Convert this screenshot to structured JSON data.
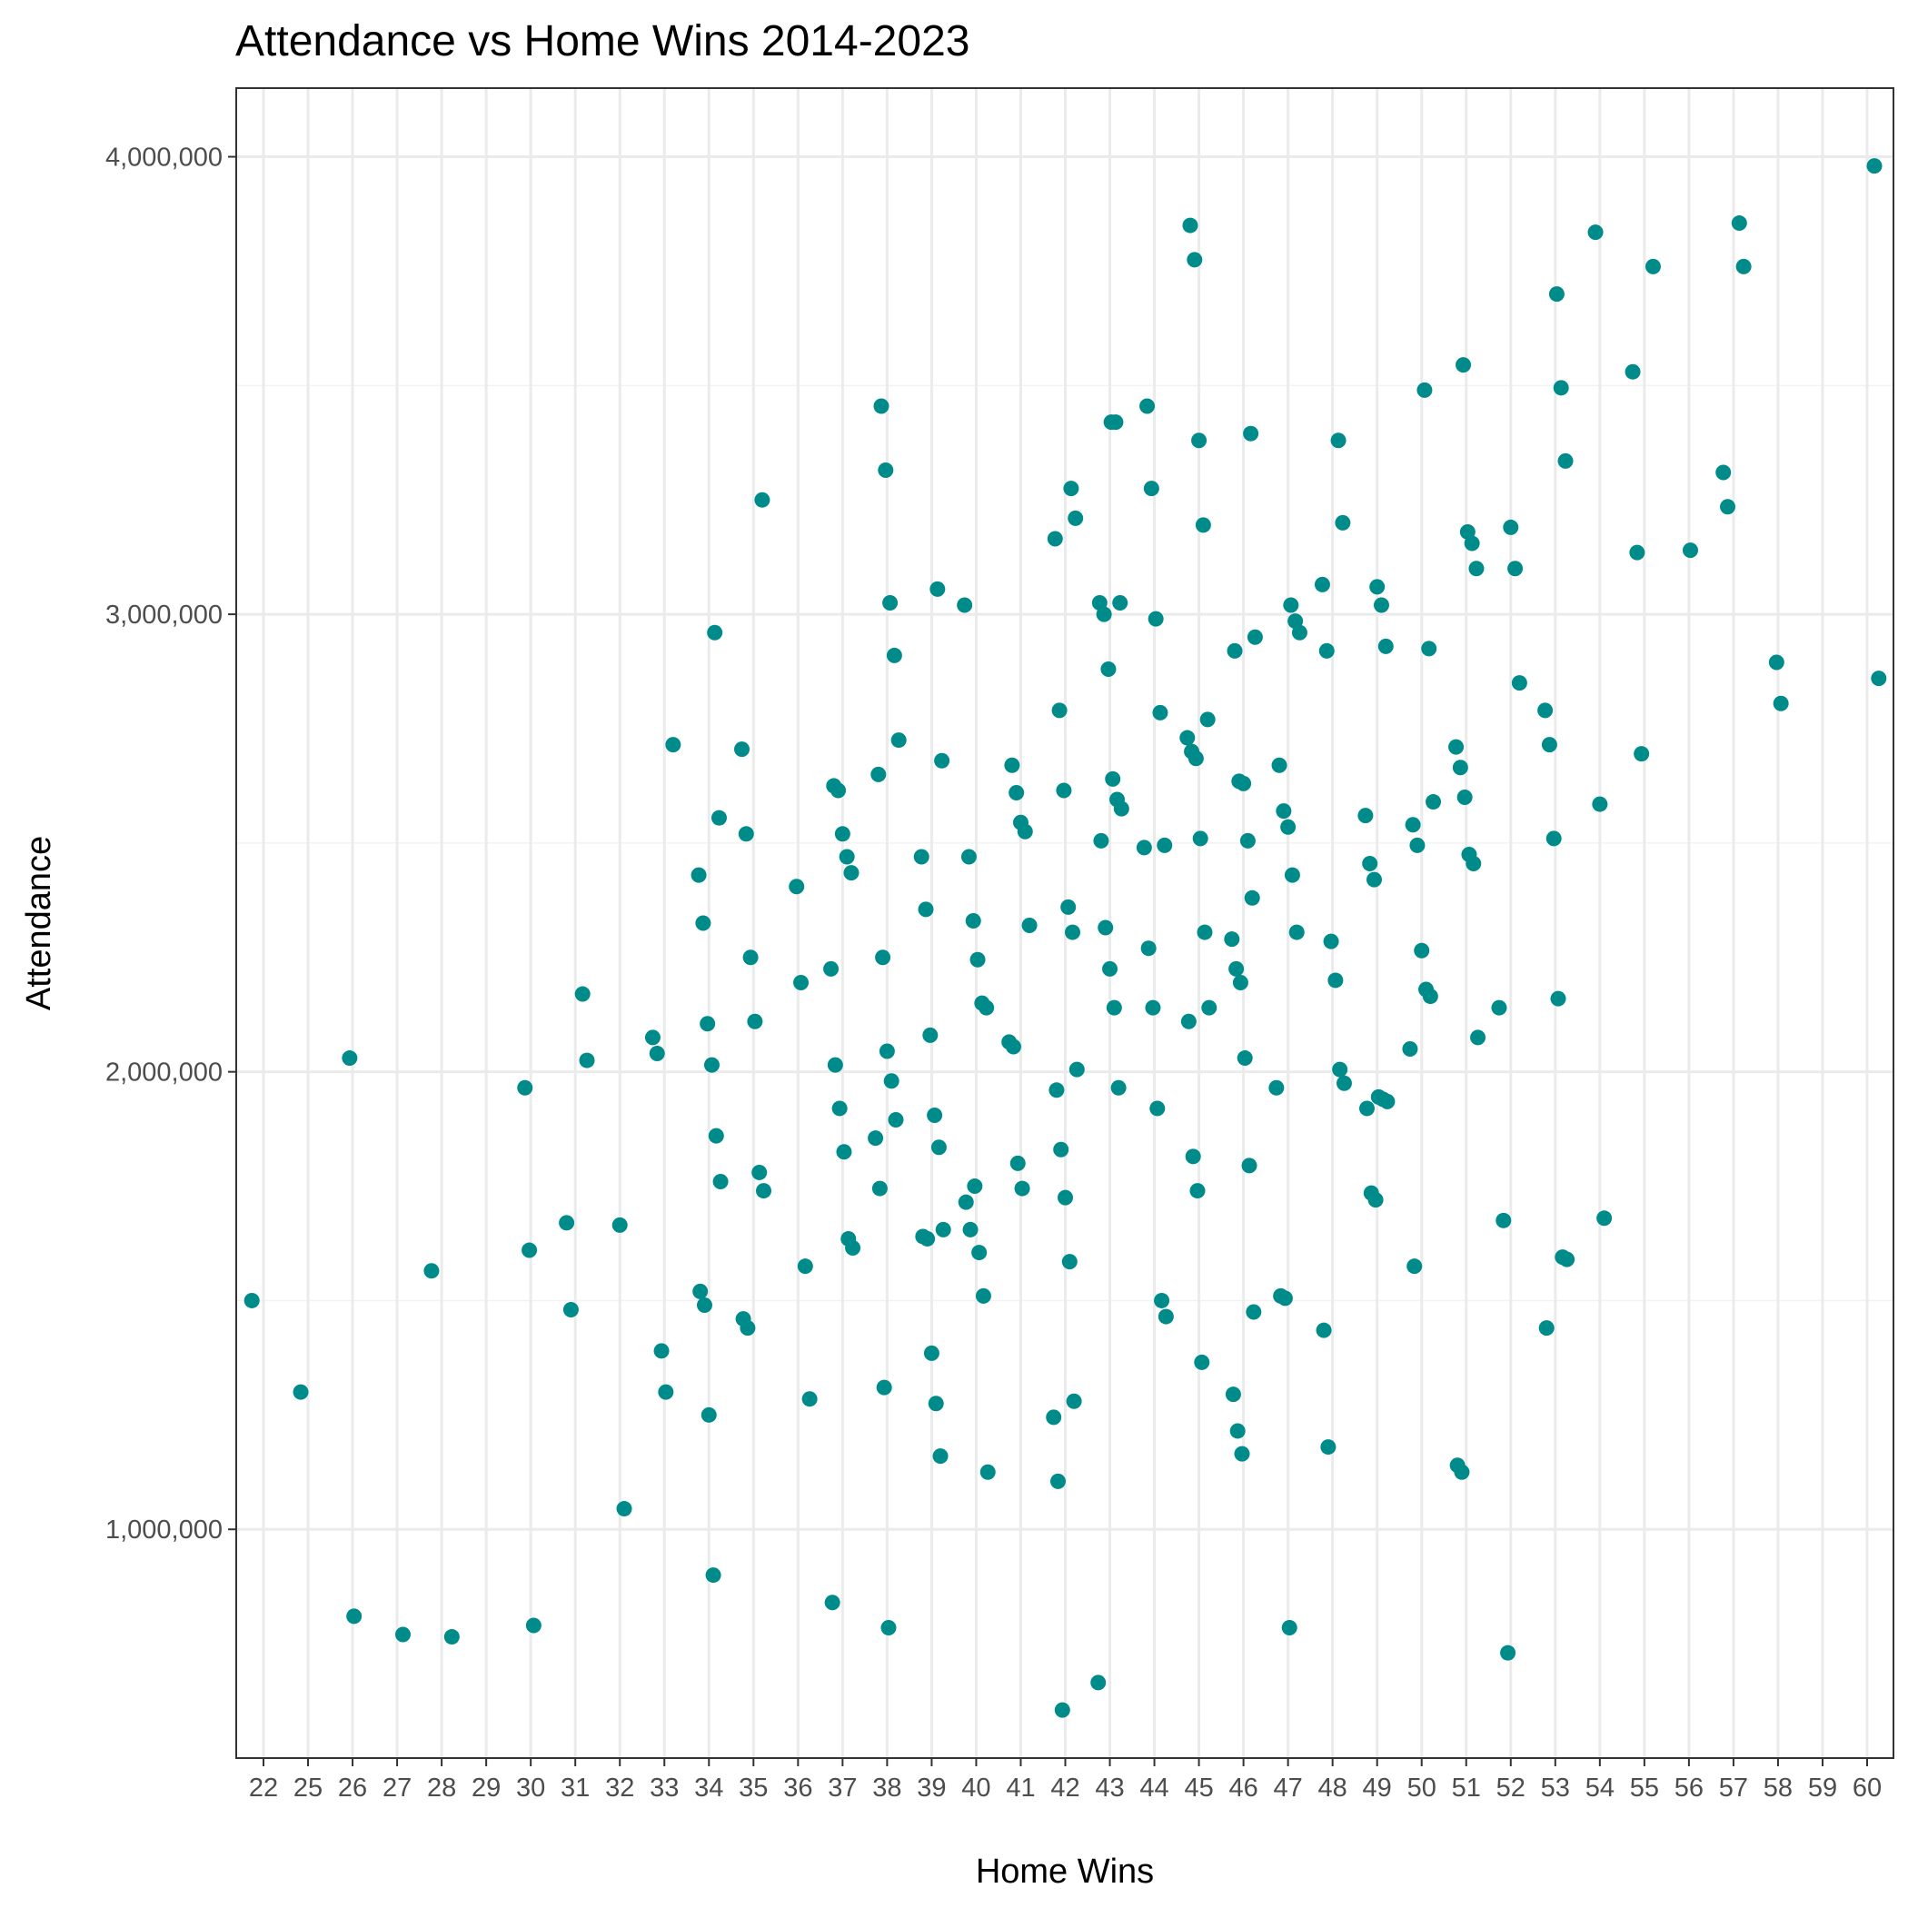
{
  "chart_data": {
    "type": "scatter",
    "title": "Attendance vs Home Wins 2014-2023",
    "xlabel": "Home Wins",
    "ylabel": "Attendance",
    "x_categories": [
      "22",
      "25",
      "26",
      "27",
      "28",
      "29",
      "30",
      "31",
      "32",
      "33",
      "34",
      "35",
      "36",
      "37",
      "38",
      "39",
      "40",
      "41",
      "42",
      "43",
      "44",
      "45",
      "46",
      "47",
      "48",
      "49",
      "50",
      "51",
      "52",
      "53",
      "54",
      "55",
      "56",
      "57",
      "58",
      "59",
      "60"
    ],
    "y_ticks": [
      1000000,
      2000000,
      3000000,
      4000000
    ],
    "y_tick_labels": [
      "1,000,000",
      "2,000,000",
      "3,000,000",
      "4,000,000"
    ],
    "ylim": [
      500000,
      4150000
    ],
    "grid": true,
    "point_color": "#008B8B",
    "points": [
      [
        22,
        1500000
      ],
      [
        25,
        1300000
      ],
      [
        26,
        2030000
      ],
      [
        26,
        810000
      ],
      [
        27,
        770000
      ],
      [
        28,
        765000
      ],
      [
        28,
        1565000
      ],
      [
        30,
        1965000
      ],
      [
        30,
        1610000
      ],
      [
        30,
        790000
      ],
      [
        31,
        2170000
      ],
      [
        31,
        2025000
      ],
      [
        31,
        1670000
      ],
      [
        31,
        1480000
      ],
      [
        32,
        1665000
      ],
      [
        32,
        1045000
      ],
      [
        33,
        2715000
      ],
      [
        33,
        2075000
      ],
      [
        33,
        2040000
      ],
      [
        33,
        1390000
      ],
      [
        33,
        1300000
      ],
      [
        34,
        2960000
      ],
      [
        34,
        2555000
      ],
      [
        34,
        2430000
      ],
      [
        34,
        2325000
      ],
      [
        34,
        2105000
      ],
      [
        34,
        2015000
      ],
      [
        34,
        1860000
      ],
      [
        34,
        1760000
      ],
      [
        34,
        1520000
      ],
      [
        34,
        1490000
      ],
      [
        34,
        1250000
      ],
      [
        34,
        900000
      ],
      [
        35,
        3250000
      ],
      [
        35,
        2705000
      ],
      [
        35,
        2520000
      ],
      [
        35,
        2250000
      ],
      [
        35,
        2110000
      ],
      [
        35,
        1780000
      ],
      [
        35,
        1740000
      ],
      [
        35,
        1460000
      ],
      [
        35,
        1440000
      ],
      [
        36,
        2405000
      ],
      [
        36,
        2195000
      ],
      [
        36,
        1575000
      ],
      [
        36,
        1285000
      ],
      [
        37,
        2625000
      ],
      [
        37,
        2615000
      ],
      [
        37,
        2520000
      ],
      [
        37,
        2470000
      ],
      [
        37,
        2435000
      ],
      [
        37,
        2225000
      ],
      [
        37,
        2015000
      ],
      [
        37,
        1920000
      ],
      [
        37,
        1825000
      ],
      [
        37,
        1635000
      ],
      [
        37,
        1615000
      ],
      [
        37,
        840000
      ],
      [
        38,
        3455000
      ],
      [
        38,
        3315000
      ],
      [
        38,
        3025000
      ],
      [
        38,
        2910000
      ],
      [
        38,
        2725000
      ],
      [
        38,
        2650000
      ],
      [
        38,
        2250000
      ],
      [
        38,
        2045000
      ],
      [
        38,
        1980000
      ],
      [
        38,
        1895000
      ],
      [
        38,
        1855000
      ],
      [
        38,
        1745000
      ],
      [
        38,
        1310000
      ],
      [
        38,
        785000
      ],
      [
        39,
        3055000
      ],
      [
        39,
        2680000
      ],
      [
        39,
        2470000
      ],
      [
        39,
        2355000
      ],
      [
        39,
        2080000
      ],
      [
        39,
        1905000
      ],
      [
        39,
        1835000
      ],
      [
        39,
        1655000
      ],
      [
        39,
        1640000
      ],
      [
        39,
        1635000
      ],
      [
        39,
        1385000
      ],
      [
        39,
        1275000
      ],
      [
        39,
        1160000
      ],
      [
        40,
        3020000
      ],
      [
        40,
        2470000
      ],
      [
        40,
        2330000
      ],
      [
        40,
        2245000
      ],
      [
        40,
        2150000
      ],
      [
        40,
        2140000
      ],
      [
        40,
        1715000
      ],
      [
        40,
        1655000
      ],
      [
        40,
        1750000
      ],
      [
        40,
        1605000
      ],
      [
        40,
        1510000
      ],
      [
        40,
        1125000
      ],
      [
        41,
        2670000
      ],
      [
        41,
        2610000
      ],
      [
        41,
        2545000
      ],
      [
        41,
        2525000
      ],
      [
        41,
        2320000
      ],
      [
        41,
        2065000
      ],
      [
        41,
        2055000
      ],
      [
        41,
        1800000
      ],
      [
        41,
        1745000
      ],
      [
        42,
        3275000
      ],
      [
        42,
        3210000
      ],
      [
        42,
        3165000
      ],
      [
        42,
        2790000
      ],
      [
        42,
        2615000
      ],
      [
        42,
        2360000
      ],
      [
        42,
        2305000
      ],
      [
        42,
        2005000
      ],
      [
        42,
        1960000
      ],
      [
        42,
        1830000
      ],
      [
        42,
        1725000
      ],
      [
        42,
        1585000
      ],
      [
        42,
        1280000
      ],
      [
        42,
        1245000
      ],
      [
        42,
        1105000
      ],
      [
        42,
        605000
      ],
      [
        43,
        3420000
      ],
      [
        43,
        3420000
      ],
      [
        43,
        3025000
      ],
      [
        43,
        3025000
      ],
      [
        43,
        3000000
      ],
      [
        43,
        2880000
      ],
      [
        43,
        2640000
      ],
      [
        43,
        2595000
      ],
      [
        43,
        2575000
      ],
      [
        43,
        2505000
      ],
      [
        43,
        2315000
      ],
      [
        43,
        2225000
      ],
      [
        43,
        2140000
      ],
      [
        43,
        1965000
      ],
      [
        43,
        665000
      ],
      [
        44,
        3455000
      ],
      [
        44,
        3275000
      ],
      [
        44,
        2990000
      ],
      [
        44,
        2785000
      ],
      [
        44,
        2495000
      ],
      [
        44,
        2490000
      ],
      [
        44,
        2270000
      ],
      [
        44,
        2140000
      ],
      [
        44,
        1920000
      ],
      [
        44,
        1500000
      ],
      [
        44,
        1465000
      ],
      [
        45,
        3850000
      ],
      [
        45,
        3775000
      ],
      [
        45,
        3380000
      ],
      [
        45,
        3195000
      ],
      [
        45,
        2770000
      ],
      [
        45,
        2730000
      ],
      [
        45,
        2700000
      ],
      [
        45,
        2685000
      ],
      [
        45,
        2510000
      ],
      [
        45,
        2305000
      ],
      [
        45,
        2140000
      ],
      [
        45,
        2110000
      ],
      [
        45,
        1815000
      ],
      [
        45,
        1740000
      ],
      [
        45,
        1365000
      ],
      [
        46,
        3395000
      ],
      [
        46,
        2950000
      ],
      [
        46,
        2920000
      ],
      [
        46,
        2635000
      ],
      [
        46,
        2630000
      ],
      [
        46,
        2505000
      ],
      [
        46,
        2380000
      ],
      [
        46,
        2290000
      ],
      [
        46,
        2225000
      ],
      [
        46,
        2195000
      ],
      [
        46,
        2030000
      ],
      [
        46,
        1795000
      ],
      [
        46,
        1475000
      ],
      [
        46,
        1295000
      ],
      [
        46,
        1215000
      ],
      [
        46,
        1165000
      ],
      [
        47,
        3020000
      ],
      [
        47,
        2985000
      ],
      [
        47,
        2960000
      ],
      [
        47,
        2670000
      ],
      [
        47,
        2570000
      ],
      [
        47,
        2535000
      ],
      [
        47,
        2430000
      ],
      [
        47,
        2305000
      ],
      [
        47,
        1965000
      ],
      [
        47,
        1510000
      ],
      [
        47,
        1505000
      ],
      [
        47,
        785000
      ],
      [
        48,
        3380000
      ],
      [
        48,
        3200000
      ],
      [
        48,
        3065000
      ],
      [
        48,
        2920000
      ],
      [
        48,
        2285000
      ],
      [
        48,
        2200000
      ],
      [
        48,
        2005000
      ],
      [
        48,
        1975000
      ],
      [
        48,
        1435000
      ],
      [
        48,
        1180000
      ],
      [
        49,
        3060000
      ],
      [
        49,
        3020000
      ],
      [
        49,
        2930000
      ],
      [
        49,
        2560000
      ],
      [
        49,
        2455000
      ],
      [
        49,
        2420000
      ],
      [
        49,
        1945000
      ],
      [
        49,
        1940000
      ],
      [
        49,
        1935000
      ],
      [
        49,
        1920000
      ],
      [
        49,
        1735000
      ],
      [
        49,
        1720000
      ],
      [
        50,
        3490000
      ],
      [
        50,
        2925000
      ],
      [
        50,
        2590000
      ],
      [
        50,
        2540000
      ],
      [
        50,
        2495000
      ],
      [
        50,
        2265000
      ],
      [
        50,
        2180000
      ],
      [
        50,
        2165000
      ],
      [
        50,
        2050000
      ],
      [
        50,
        1575000
      ],
      [
        51,
        3545000
      ],
      [
        51,
        3180000
      ],
      [
        51,
        3155000
      ],
      [
        51,
        3100000
      ],
      [
        51,
        2710000
      ],
      [
        51,
        2665000
      ],
      [
        51,
        2600000
      ],
      [
        51,
        2475000
      ],
      [
        51,
        2455000
      ],
      [
        51,
        2075000
      ],
      [
        51,
        1140000
      ],
      [
        51,
        1125000
      ],
      [
        52,
        3190000
      ],
      [
        52,
        3100000
      ],
      [
        52,
        2850000
      ],
      [
        52,
        2140000
      ],
      [
        52,
        1675000
      ],
      [
        52,
        730000
      ],
      [
        53,
        3700000
      ],
      [
        53,
        3495000
      ],
      [
        53,
        3335000
      ],
      [
        53,
        2790000
      ],
      [
        53,
        2715000
      ],
      [
        53,
        2510000
      ],
      [
        53,
        2160000
      ],
      [
        53,
        1595000
      ],
      [
        53,
        1590000
      ],
      [
        53,
        1440000
      ],
      [
        54,
        3835000
      ],
      [
        54,
        2585000
      ],
      [
        54,
        1680000
      ],
      [
        55,
        3760000
      ],
      [
        55,
        3530000
      ],
      [
        55,
        3135000
      ],
      [
        55,
        2695000
      ],
      [
        56,
        3140000
      ],
      [
        57,
        3855000
      ],
      [
        57,
        3760000
      ],
      [
        57,
        3310000
      ],
      [
        57,
        3235000
      ],
      [
        58,
        2895000
      ],
      [
        58,
        2805000
      ],
      [
        60,
        3980000
      ],
      [
        60,
        2860000
      ]
    ]
  }
}
